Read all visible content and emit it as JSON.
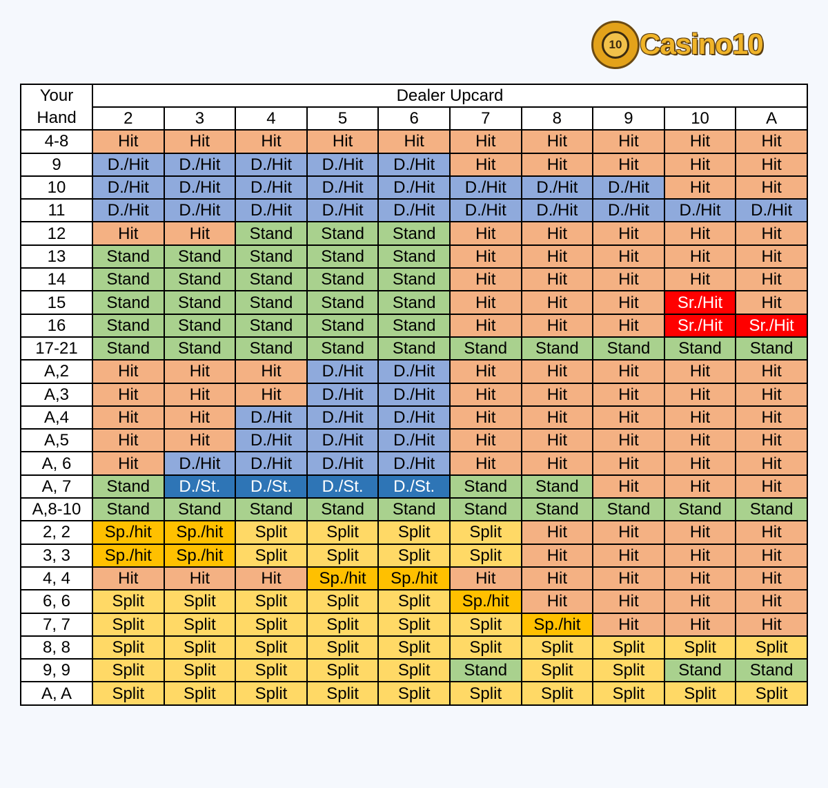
{
  "logo": {
    "chip_text": "10",
    "brand": "Casino10"
  },
  "table": {
    "hand_header_line1": "Your",
    "hand_header_line2": "Hand",
    "dealer_header": "Dealer Upcard",
    "upcards": [
      "2",
      "3",
      "4",
      "5",
      "6",
      "7",
      "8",
      "9",
      "10",
      "A"
    ],
    "rows": [
      {
        "hand": "4-8",
        "cells": [
          "Hit",
          "Hit",
          "Hit",
          "Hit",
          "Hit",
          "Hit",
          "Hit",
          "Hit",
          "Hit",
          "Hit"
        ]
      },
      {
        "hand": "9",
        "cells": [
          "D./Hit",
          "D./Hit",
          "D./Hit",
          "D./Hit",
          "D./Hit",
          "Hit",
          "Hit",
          "Hit",
          "Hit",
          "Hit"
        ]
      },
      {
        "hand": "10",
        "cells": [
          "D./Hit",
          "D./Hit",
          "D./Hit",
          "D./Hit",
          "D./Hit",
          "D./Hit",
          "D./Hit",
          "D./Hit",
          "Hit",
          "Hit"
        ]
      },
      {
        "hand": "11",
        "cells": [
          "D./Hit",
          "D./Hit",
          "D./Hit",
          "D./Hit",
          "D./Hit",
          "D./Hit",
          "D./Hit",
          "D./Hit",
          "D./Hit",
          "D./Hit"
        ]
      },
      {
        "hand": "12",
        "cells": [
          "Hit",
          "Hit",
          "Stand",
          "Stand",
          "Stand",
          "Hit",
          "Hit",
          "Hit",
          "Hit",
          "Hit"
        ]
      },
      {
        "hand": "13",
        "cells": [
          "Stand",
          "Stand",
          "Stand",
          "Stand",
          "Stand",
          "Hit",
          "Hit",
          "Hit",
          "Hit",
          "Hit"
        ]
      },
      {
        "hand": "14",
        "cells": [
          "Stand",
          "Stand",
          "Stand",
          "Stand",
          "Stand",
          "Hit",
          "Hit",
          "Hit",
          "Hit",
          "Hit"
        ]
      },
      {
        "hand": "15",
        "cells": [
          "Stand",
          "Stand",
          "Stand",
          "Stand",
          "Stand",
          "Hit",
          "Hit",
          "Hit",
          "Sr./Hit",
          "Hit"
        ]
      },
      {
        "hand": "16",
        "cells": [
          "Stand",
          "Stand",
          "Stand",
          "Stand",
          "Stand",
          "Hit",
          "Hit",
          "Hit",
          "Sr./Hit",
          "Sr./Hit"
        ]
      },
      {
        "hand": "17-21",
        "cells": [
          "Stand",
          "Stand",
          "Stand",
          "Stand",
          "Stand",
          "Stand",
          "Stand",
          "Stand",
          "Stand",
          "Stand"
        ]
      },
      {
        "hand": "A,2",
        "cells": [
          "Hit",
          "Hit",
          "Hit",
          "D./Hit",
          "D./Hit",
          "Hit",
          "Hit",
          "Hit",
          "Hit",
          "Hit"
        ]
      },
      {
        "hand": "A,3",
        "cells": [
          "Hit",
          "Hit",
          "Hit",
          "D./Hit",
          "D./Hit",
          "Hit",
          "Hit",
          "Hit",
          "Hit",
          "Hit"
        ]
      },
      {
        "hand": "A,4",
        "cells": [
          "Hit",
          "Hit",
          "D./Hit",
          "D./Hit",
          "D./Hit",
          "Hit",
          "Hit",
          "Hit",
          "Hit",
          "Hit"
        ]
      },
      {
        "hand": "A,5",
        "cells": [
          "Hit",
          "Hit",
          "D./Hit",
          "D./Hit",
          "D./Hit",
          "Hit",
          "Hit",
          "Hit",
          "Hit",
          "Hit"
        ]
      },
      {
        "hand": "A, 6",
        "cells": [
          "Hit",
          "D./Hit",
          "D./Hit",
          "D./Hit",
          "D./Hit",
          "Hit",
          "Hit",
          "Hit",
          "Hit",
          "Hit"
        ]
      },
      {
        "hand": "A, 7",
        "cells": [
          "Stand",
          "D./St.",
          "D./St.",
          "D./St.",
          "D./St.",
          "Stand",
          "Stand",
          "Hit",
          "Hit",
          "Hit"
        ]
      },
      {
        "hand": "A,8-10",
        "cells": [
          "Stand",
          "Stand",
          "Stand",
          "Stand",
          "Stand",
          "Stand",
          "Stand",
          "Stand",
          "Stand",
          "Stand"
        ]
      },
      {
        "hand": "2, 2",
        "cells": [
          "Sp./hit",
          "Sp./hit",
          "Split",
          "Split",
          "Split",
          "Split",
          "Hit",
          "Hit",
          "Hit",
          "Hit"
        ]
      },
      {
        "hand": "3, 3",
        "cells": [
          "Sp./hit",
          "Sp./hit",
          "Split",
          "Split",
          "Split",
          "Split",
          "Hit",
          "Hit",
          "Hit",
          "Hit"
        ]
      },
      {
        "hand": "4, 4",
        "cells": [
          "Hit",
          "Hit",
          "Hit",
          "Sp./hit",
          "Sp./hit",
          "Hit",
          "Hit",
          "Hit",
          "Hit",
          "Hit"
        ]
      },
      {
        "hand": "6, 6",
        "cells": [
          "Split",
          "Split",
          "Split",
          "Split",
          "Split",
          "Sp./hit",
          "Hit",
          "Hit",
          "Hit",
          "Hit"
        ]
      },
      {
        "hand": "7, 7",
        "cells": [
          "Split",
          "Split",
          "Split",
          "Split",
          "Split",
          "Split",
          "Sp./hit",
          "Hit",
          "Hit",
          "Hit"
        ]
      },
      {
        "hand": "8, 8",
        "cells": [
          "Split",
          "Split",
          "Split",
          "Split",
          "Split",
          "Split",
          "Split",
          "Split",
          "Split",
          "Split"
        ]
      },
      {
        "hand": "9, 9",
        "cells": [
          "Split",
          "Split",
          "Split",
          "Split",
          "Split",
          "Stand",
          "Split",
          "Split",
          "Stand",
          "Stand"
        ]
      },
      {
        "hand": "A, A",
        "cells": [
          "Split",
          "Split",
          "Split",
          "Split",
          "Split",
          "Split",
          "Split",
          "Split",
          "Split",
          "Split"
        ]
      }
    ]
  },
  "colors": {
    "Hit": "#f4b183",
    "D./Hit": "#8faadc",
    "Stand": "#a9d18e",
    "Sr./Hit": "#ff0000",
    "D./St.": "#2e75b6",
    "Split": "#ffd966",
    "Sp./hit": "#ffc000"
  }
}
